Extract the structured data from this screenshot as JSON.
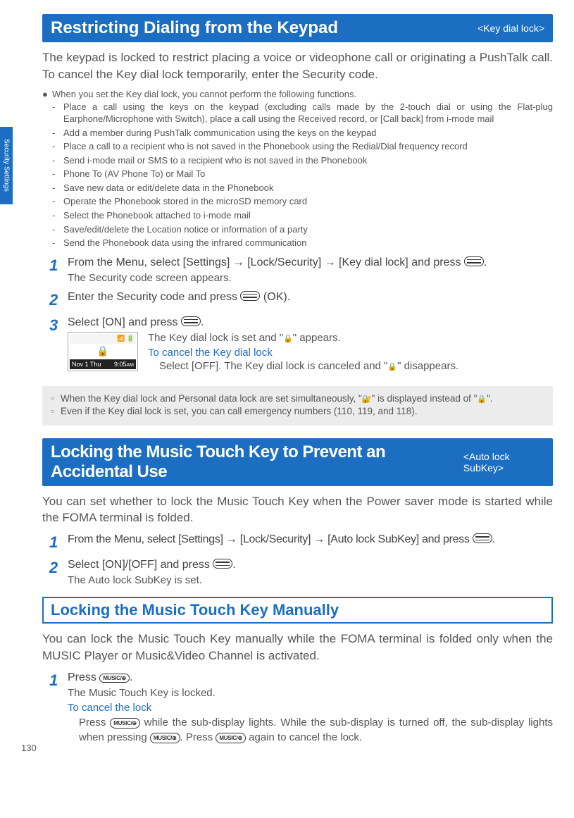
{
  "page_number": "130",
  "side_tab": "Security Settings",
  "colors": {
    "primary_blue": "#1b6ec2",
    "note_bg": "#ececec",
    "body_text": "#555"
  },
  "sec1": {
    "title": "Restricting Dialing from the Keypad",
    "tag": "<Key dial lock>",
    "intro": "The keypad is locked to restrict placing a voice or videophone call or originating a PushTalk call. To cancel the Key dial lock temporarily, enter the Security code.",
    "bullet_lead": "When you set the Key dial lock, you cannot perform the following functions.",
    "dashes": [
      "Place a call using the keys on the keypad (excluding calls made by the 2-touch dial or using the Flat-plug Earphone/Microphone with Switch), place a call using the Received record, or [Call back] from i-mode mail",
      "Add a member during PushTalk communication using the keys on the keypad",
      "Place a call to a recipient who is not saved in the Phonebook using the Redial/Dial frequency record",
      "Send i-mode mail or SMS to a recipient who is not saved in the Phonebook",
      "Phone To (AV Phone To) or Mail To",
      "Save new data or edit/delete data in the Phonebook",
      "Operate the Phonebook stored in the microSD memory card",
      "Select the Phonebook attached to i-mode mail",
      "Save/edit/delete the Location notice or information of a party",
      "Send the Phonebook data using the infrared communication"
    ],
    "step1": {
      "pre": "From the Menu, select [Settings] → [Lock/Security] → [Key dial lock] and press ",
      "sub": "The Security code screen appears."
    },
    "step2": {
      "pre": "Enter the Security code and press ",
      "post": " (OK)."
    },
    "step3": {
      "pre": "Select [ON] and press ",
      "phone_date": "Nov 1 Thu",
      "phone_time": "9:05",
      "phone_ampm": "AM",
      "set_pre": "The Key dial lock is set and \"",
      "set_post": "\" appears.",
      "cancel_title": "To cancel the Key dial lock",
      "cancel_pre": "Select [OFF]. The Key dial lock is canceled and \"",
      "cancel_post": "\" disappears."
    },
    "note1_pre": "When the Key dial lock and Personal data lock are set simultaneously, \"",
    "note1_mid": "\" is displayed instead of \"",
    "note1_post": "\".",
    "note2": "Even if the Key dial lock is set, you can call emergency numbers (110, 119, and 118)."
  },
  "sec2": {
    "title": "Locking the Music Touch Key to Prevent an Accidental Use",
    "tag": "<Auto lock SubKey>",
    "intro": "You can set whether to lock the Music Touch Key when the Power saver mode is started while the FOMA terminal is folded.",
    "step1_pre": "From the Menu, select [Settings] → [Lock/Security] → [Auto lock SubKey] and press ",
    "step2_pre": "Select [ON]/[OFF] and press ",
    "step2_sub": "The Auto lock SubKey is set."
  },
  "sec3": {
    "title": "Locking the Music Touch Key Manually",
    "intro": "You can lock the Music Touch Key manually while the FOMA terminal is folded only when the MUSIC Player or Music&Video Channel is activated.",
    "step1_pre": "Press ",
    "step1_sub": "The Music Touch Key is locked.",
    "cancel_title": "To cancel the lock",
    "cancel_pre": "Press ",
    "cancel_mid": " while the sub-display lights. While the sub-display is turned off, the sub-display lights when pressing ",
    "cancel_mid2": ". Press ",
    "cancel_post": " again to cancel the lock.",
    "music_label": "MUSIC/⊕"
  }
}
